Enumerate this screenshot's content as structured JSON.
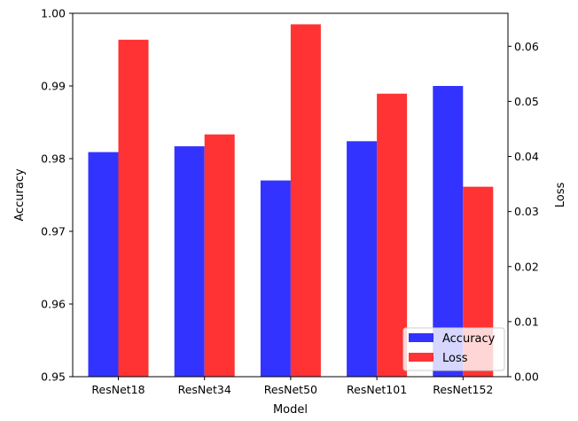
{
  "chart_data": {
    "type": "bar",
    "categories": [
      "ResNet18",
      "ResNet34",
      "ResNet50",
      "ResNet101",
      "ResNet152"
    ],
    "series": [
      {
        "name": "Accuracy",
        "axis": "left",
        "color": "#3333ff",
        "values": [
          0.9809,
          0.9817,
          0.977,
          0.9824,
          0.99
        ]
      },
      {
        "name": "Loss",
        "axis": "right",
        "color": "#ff3333",
        "values": [
          0.0612,
          0.044,
          0.064,
          0.0514,
          0.0345
        ]
      }
    ],
    "xlabel": "Model",
    "ylabel": "Accuracy",
    "y2label": "Loss",
    "ylim": [
      0.95,
      1.0
    ],
    "y2lim": [
      0.0,
      0.066
    ],
    "yticks": [
      "0.95",
      "0.96",
      "0.97",
      "0.98",
      "0.99",
      "1.00"
    ],
    "y2ticks": [
      "0.00",
      "0.01",
      "0.02",
      "0.03",
      "0.04",
      "0.05",
      "0.06"
    ],
    "legend": {
      "position": "lower-right",
      "entries": [
        "Accuracy",
        "Loss"
      ]
    },
    "grid": false
  }
}
